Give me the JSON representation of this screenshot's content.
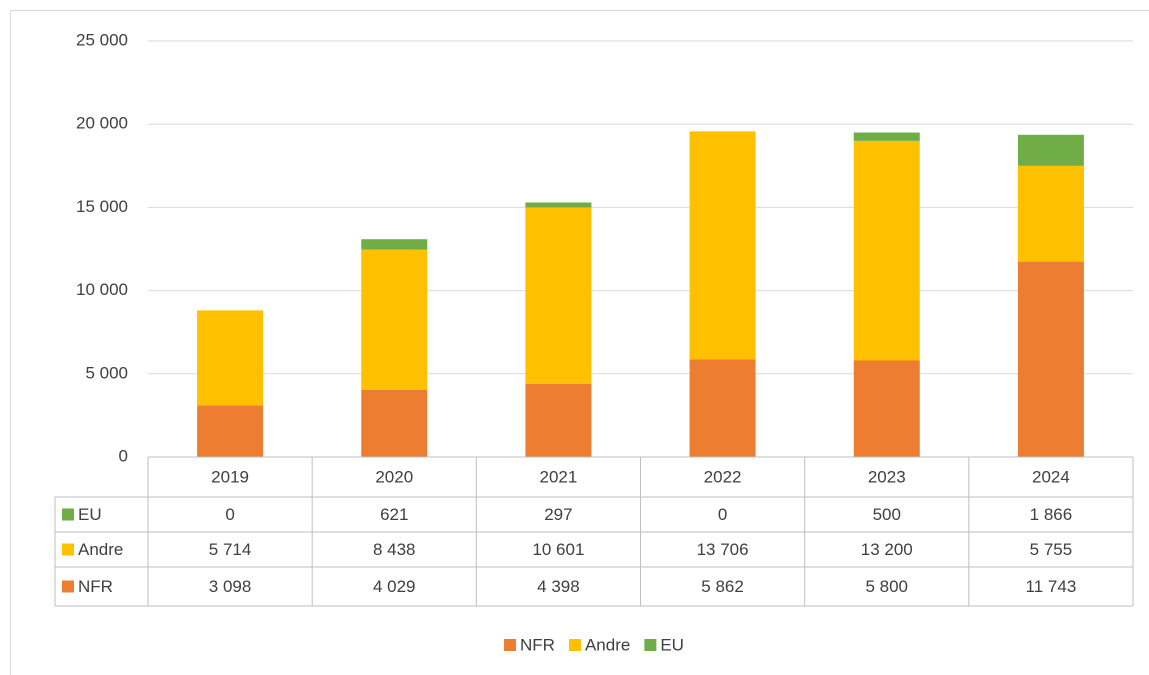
{
  "chart_data": {
    "type": "bar",
    "stacked": true,
    "categories": [
      "2019",
      "2020",
      "2021",
      "2022",
      "2023",
      "2024"
    ],
    "series": [
      {
        "name": "NFR",
        "color": "#ed7d31",
        "values": [
          3098,
          4029,
          4398,
          5862,
          5800,
          11743
        ],
        "value_labels": [
          "3 098",
          "4 029",
          "4 398",
          "5 862",
          "5 800",
          "11 743"
        ]
      },
      {
        "name": "Andre",
        "color": "#ffc000",
        "values": [
          5714,
          8438,
          10601,
          13706,
          13200,
          5755
        ],
        "value_labels": [
          "5 714",
          "8 438",
          "10 601",
          "13 706",
          "13 200",
          "5 755"
        ]
      },
      {
        "name": "EU",
        "color": "#70ad47",
        "values": [
          0,
          621,
          297,
          0,
          500,
          1866
        ],
        "value_labels": [
          "0",
          "621",
          "297",
          "0",
          "500",
          "1 866"
        ]
      }
    ],
    "ylim": [
      0,
      25000
    ],
    "yticks": [
      0,
      {
        "value": 5000,
        "label": "5 000"
      },
      {
        "value": 10000,
        "label": "10 000"
      },
      {
        "value": 15000,
        "label": "15 000"
      },
      {
        "value": 20000,
        "label": "20 000"
      },
      {
        "value": 25000,
        "label": "25 000"
      }
    ],
    "grid": true,
    "data_table": true,
    "legend": "bottom"
  }
}
